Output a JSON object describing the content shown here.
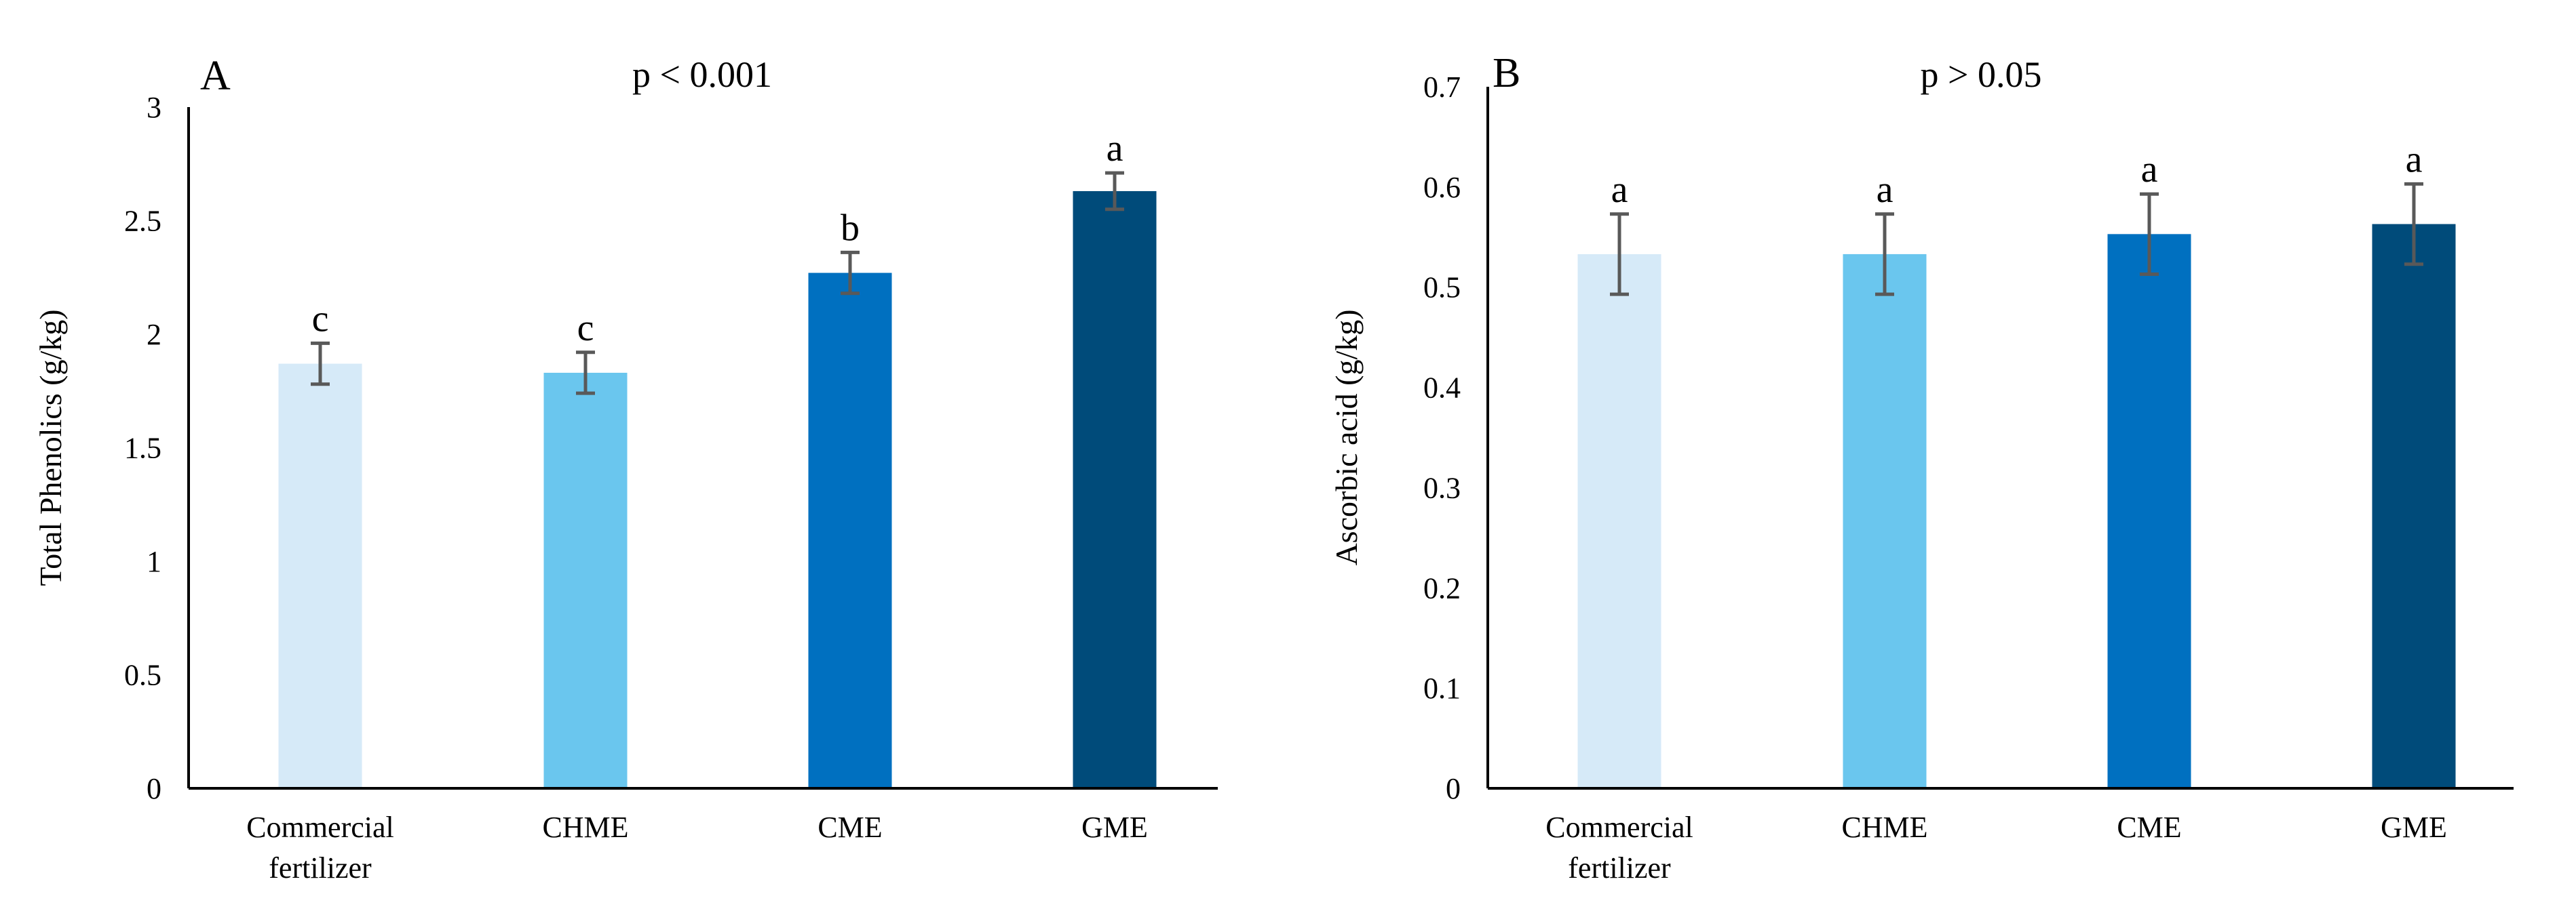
{
  "chart_data": [
    {
      "type": "bar",
      "panel_label": "A",
      "title": "p < 0.001",
      "xlabel": "",
      "ylabel": "Total Phenolics (g/kg)",
      "ylim": [
        0,
        3
      ],
      "yticks": [
        "0",
        "0.5",
        "1",
        "1.5",
        "2",
        "2.5",
        "3"
      ],
      "categories": [
        [
          "Commercial",
          "fertilizer"
        ],
        [
          "CHME"
        ],
        [
          "CME"
        ],
        [
          "GME"
        ]
      ],
      "values": [
        1.87,
        1.83,
        2.27,
        2.63
      ],
      "errors": [
        0.09,
        0.09,
        0.09,
        0.08
      ],
      "significance": [
        "c",
        "c",
        "b",
        "a"
      ],
      "colors": [
        "#d6eaf8",
        "#6ac6ee",
        "#0070c0",
        "#004b7a"
      ],
      "grid": false
    },
    {
      "type": "bar",
      "panel_label": "B",
      "title": "p > 0.05",
      "xlabel": "",
      "ylabel": "Ascorbic acid (g/kg)",
      "ylim": [
        0,
        0.7
      ],
      "yticks": [
        "0",
        "0.1",
        "0.2",
        "0.3",
        "0.4",
        "0.5",
        "0.6",
        "0.7"
      ],
      "categories": [
        [
          "Commercial",
          "fertilizer"
        ],
        [
          "CHME"
        ],
        [
          "CME"
        ],
        [
          "GME"
        ]
      ],
      "values": [
        0.533,
        0.533,
        0.553,
        0.563
      ],
      "errors": [
        0.04,
        0.04,
        0.04,
        0.04
      ],
      "significance": [
        "a",
        "a",
        "a",
        "a"
      ],
      "colors": [
        "#d6eaf8",
        "#6ac6ee",
        "#0070c0",
        "#004b7a"
      ],
      "grid": false
    }
  ]
}
